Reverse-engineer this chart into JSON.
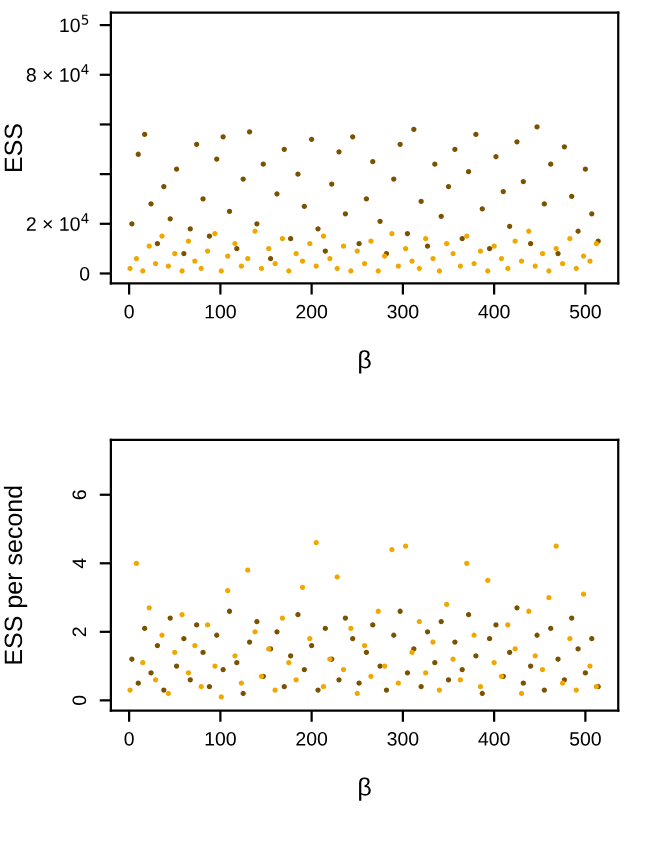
{
  "chart_data": [
    {
      "type": "scatter",
      "ylabel": "ESS",
      "xlabel": "β",
      "marker": "circle",
      "grid": false,
      "xlim": [
        -20,
        536
      ],
      "xticks": [
        0,
        100,
        200,
        300,
        400,
        500
      ],
      "ylim": [
        -4000,
        105000
      ],
      "yticks": [
        0,
        {
          "value": 20000,
          "label": "2 × 10$^{4}$"
        },
        {
          "value": 40000,
          "label": null
        },
        {
          "value": 60000,
          "label": null
        },
        {
          "value": 80000,
          "label": "8 × 10$^{4}$"
        },
        {
          "value": 100000,
          "label": "10$^{5}$"
        }
      ],
      "series": [
        {
          "color": "#7a5200",
          "x": [
            3,
            10,
            17,
            24,
            31,
            38,
            45,
            52,
            60,
            67,
            74,
            81,
            88,
            96,
            103,
            110,
            118,
            125,
            132,
            140,
            147,
            155,
            162,
            170,
            177,
            185,
            192,
            200,
            207,
            215,
            222,
            230,
            237,
            245,
            252,
            260,
            267,
            275,
            282,
            290,
            297,
            305,
            312,
            320,
            327,
            335,
            342,
            350,
            357,
            365,
            372,
            380,
            387,
            395,
            402,
            410,
            417,
            425,
            432,
            440,
            447,
            455,
            462,
            470,
            477,
            485,
            492,
            500,
            507,
            514
          ],
          "values": [
            20000,
            48000,
            56000,
            28000,
            12000,
            35000,
            22000,
            42000,
            8000,
            18000,
            52000,
            30000,
            15000,
            46000,
            55000,
            25000,
            10000,
            38000,
            57000,
            20000,
            44000,
            6000,
            32000,
            50000,
            14000,
            40000,
            27000,
            54000,
            18000,
            9000,
            36000,
            49000,
            24000,
            55000,
            12000,
            30000,
            45000,
            21000,
            8000,
            38000,
            52000,
            16000,
            58000,
            29000,
            11000,
            44000,
            23000,
            35000,
            50000,
            14000,
            41000,
            56000,
            26000,
            10000,
            47000,
            33000,
            19000,
            53000,
            37000,
            12000,
            59000,
            28000,
            44000,
            8000,
            51000,
            31000,
            17000,
            42000,
            24000,
            13000
          ]
        },
        {
          "color": "#f0a800",
          "x": [
            1,
            8,
            15,
            22,
            29,
            36,
            43,
            50,
            58,
            65,
            72,
            79,
            86,
            94,
            101,
            108,
            116,
            123,
            130,
            138,
            145,
            153,
            160,
            168,
            175,
            183,
            190,
            198,
            205,
            213,
            220,
            228,
            235,
            243,
            250,
            258,
            265,
            273,
            280,
            288,
            295,
            303,
            310,
            318,
            325,
            333,
            340,
            348,
            355,
            363,
            370,
            378,
            385,
            393,
            400,
            408,
            415,
            423,
            430,
            438,
            445,
            453,
            460,
            468,
            475,
            483,
            490,
            498,
            505,
            512
          ],
          "values": [
            2000,
            6000,
            1000,
            11000,
            4000,
            15000,
            3000,
            8000,
            1000,
            13000,
            5000,
            2000,
            9000,
            16000,
            1000,
            7000,
            12000,
            3000,
            6000,
            17000,
            2000,
            10000,
            4000,
            14000,
            1000,
            8000,
            5000,
            12000,
            3000,
            15000,
            6000,
            2000,
            11000,
            1000,
            9000,
            4000,
            13000,
            1000,
            7000,
            16000,
            3000,
            10000,
            5000,
            2000,
            14000,
            6000,
            1000,
            12000,
            8000,
            3000,
            15000,
            4000,
            9000,
            1000,
            11000,
            6000,
            2000,
            13000,
            5000,
            17000,
            3000,
            8000,
            1000,
            10000,
            4000,
            14000,
            2000,
            7000,
            5000,
            12000
          ]
        }
      ]
    },
    {
      "type": "scatter",
      "ylabel": "ESS per second",
      "xlabel": "β",
      "marker": "circle",
      "grid": false,
      "xlim": [
        -20,
        536
      ],
      "xticks": [
        0,
        100,
        200,
        300,
        400,
        500
      ],
      "ylim": [
        -0.3,
        7.6
      ],
      "yticks": [
        0,
        2,
        4,
        6
      ],
      "series": [
        {
          "color": "#7a5200",
          "x": [
            3,
            10,
            17,
            24,
            31,
            38,
            45,
            52,
            60,
            67,
            74,
            81,
            88,
            96,
            103,
            110,
            118,
            125,
            132,
            140,
            147,
            155,
            162,
            170,
            177,
            185,
            192,
            200,
            207,
            215,
            222,
            230,
            237,
            245,
            252,
            260,
            267,
            275,
            282,
            290,
            297,
            305,
            312,
            320,
            327,
            335,
            342,
            350,
            357,
            365,
            372,
            380,
            387,
            395,
            402,
            410,
            417,
            425,
            432,
            440,
            447,
            455,
            462,
            470,
            477,
            485,
            492,
            500,
            507,
            514
          ],
          "values": [
            1.2,
            0.5,
            2.1,
            0.8,
            1.6,
            0.3,
            2.4,
            1.0,
            1.8,
            0.6,
            2.2,
            1.4,
            0.4,
            1.9,
            0.9,
            2.6,
            1.1,
            0.2,
            1.7,
            2.3,
            0.7,
            1.5,
            2.0,
            0.4,
            1.3,
            2.5,
            0.9,
            1.6,
            0.3,
            2.1,
            1.2,
            0.6,
            2.4,
            1.8,
            0.5,
            1.4,
            2.2,
            1.0,
            0.3,
            1.9,
            2.6,
            0.8,
            1.5,
            0.4,
            2.0,
            1.1,
            2.3,
            0.6,
            1.7,
            0.9,
            2.5,
            1.3,
            0.2,
            1.8,
            2.2,
            0.7,
            1.4,
            2.7,
            0.5,
            1.0,
            1.9,
            0.3,
            2.1,
            1.2,
            0.6,
            2.4,
            1.5,
            0.8,
            1.8,
            0.4
          ]
        },
        {
          "color": "#f0a800",
          "x": [
            1,
            8,
            15,
            22,
            29,
            36,
            43,
            50,
            58,
            65,
            72,
            79,
            86,
            94,
            101,
            108,
            116,
            123,
            130,
            138,
            145,
            153,
            160,
            168,
            175,
            183,
            190,
            198,
            205,
            213,
            220,
            228,
            235,
            243,
            250,
            258,
            265,
            273,
            280,
            288,
            295,
            303,
            310,
            318,
            325,
            333,
            340,
            348,
            355,
            363,
            370,
            378,
            385,
            393,
            400,
            408,
            415,
            423,
            430,
            438,
            445,
            453,
            460,
            468,
            475,
            483,
            490,
            498,
            505,
            512
          ],
          "values": [
            0.3,
            4.0,
            1.1,
            2.7,
            0.6,
            1.9,
            0.2,
            1.4,
            2.5,
            0.8,
            1.6,
            0.4,
            2.2,
            1.0,
            0.1,
            3.2,
            1.3,
            0.5,
            3.8,
            2.0,
            0.7,
            1.5,
            0.3,
            2.4,
            1.1,
            0.6,
            3.3,
            1.8,
            4.6,
            0.4,
            1.2,
            3.6,
            0.9,
            2.1,
            0.2,
            1.6,
            0.7,
            2.6,
            1.0,
            4.4,
            0.5,
            4.5,
            1.4,
            2.3,
            0.8,
            1.7,
            0.3,
            2.8,
            1.2,
            0.6,
            4.0,
            1.9,
            0.4,
            3.5,
            1.1,
            0.7,
            2.2,
            1.5,
            0.2,
            2.6,
            1.3,
            0.9,
            3.0,
            4.5,
            0.5,
            1.8,
            0.3,
            3.1,
            1.0,
            0.4
          ]
        }
      ]
    }
  ]
}
